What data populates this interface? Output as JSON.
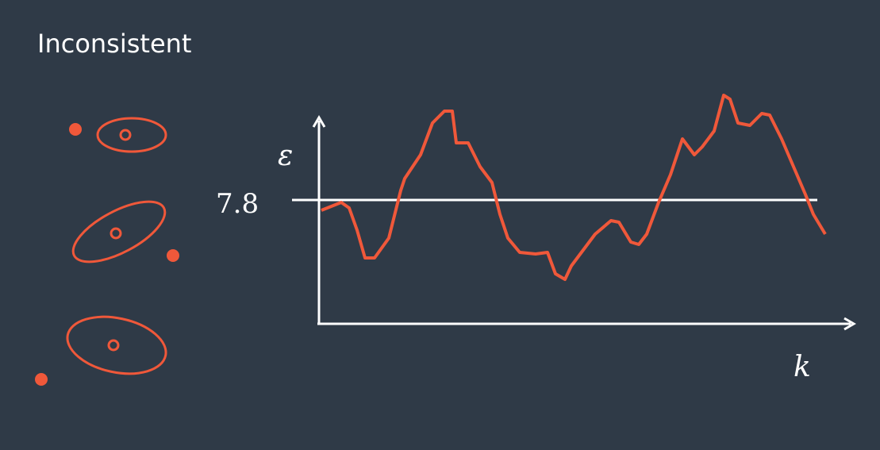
{
  "title": "Inconsistent",
  "chart": {
    "y_label": "ε",
    "x_label": "k",
    "threshold": 7.8
  }
}
